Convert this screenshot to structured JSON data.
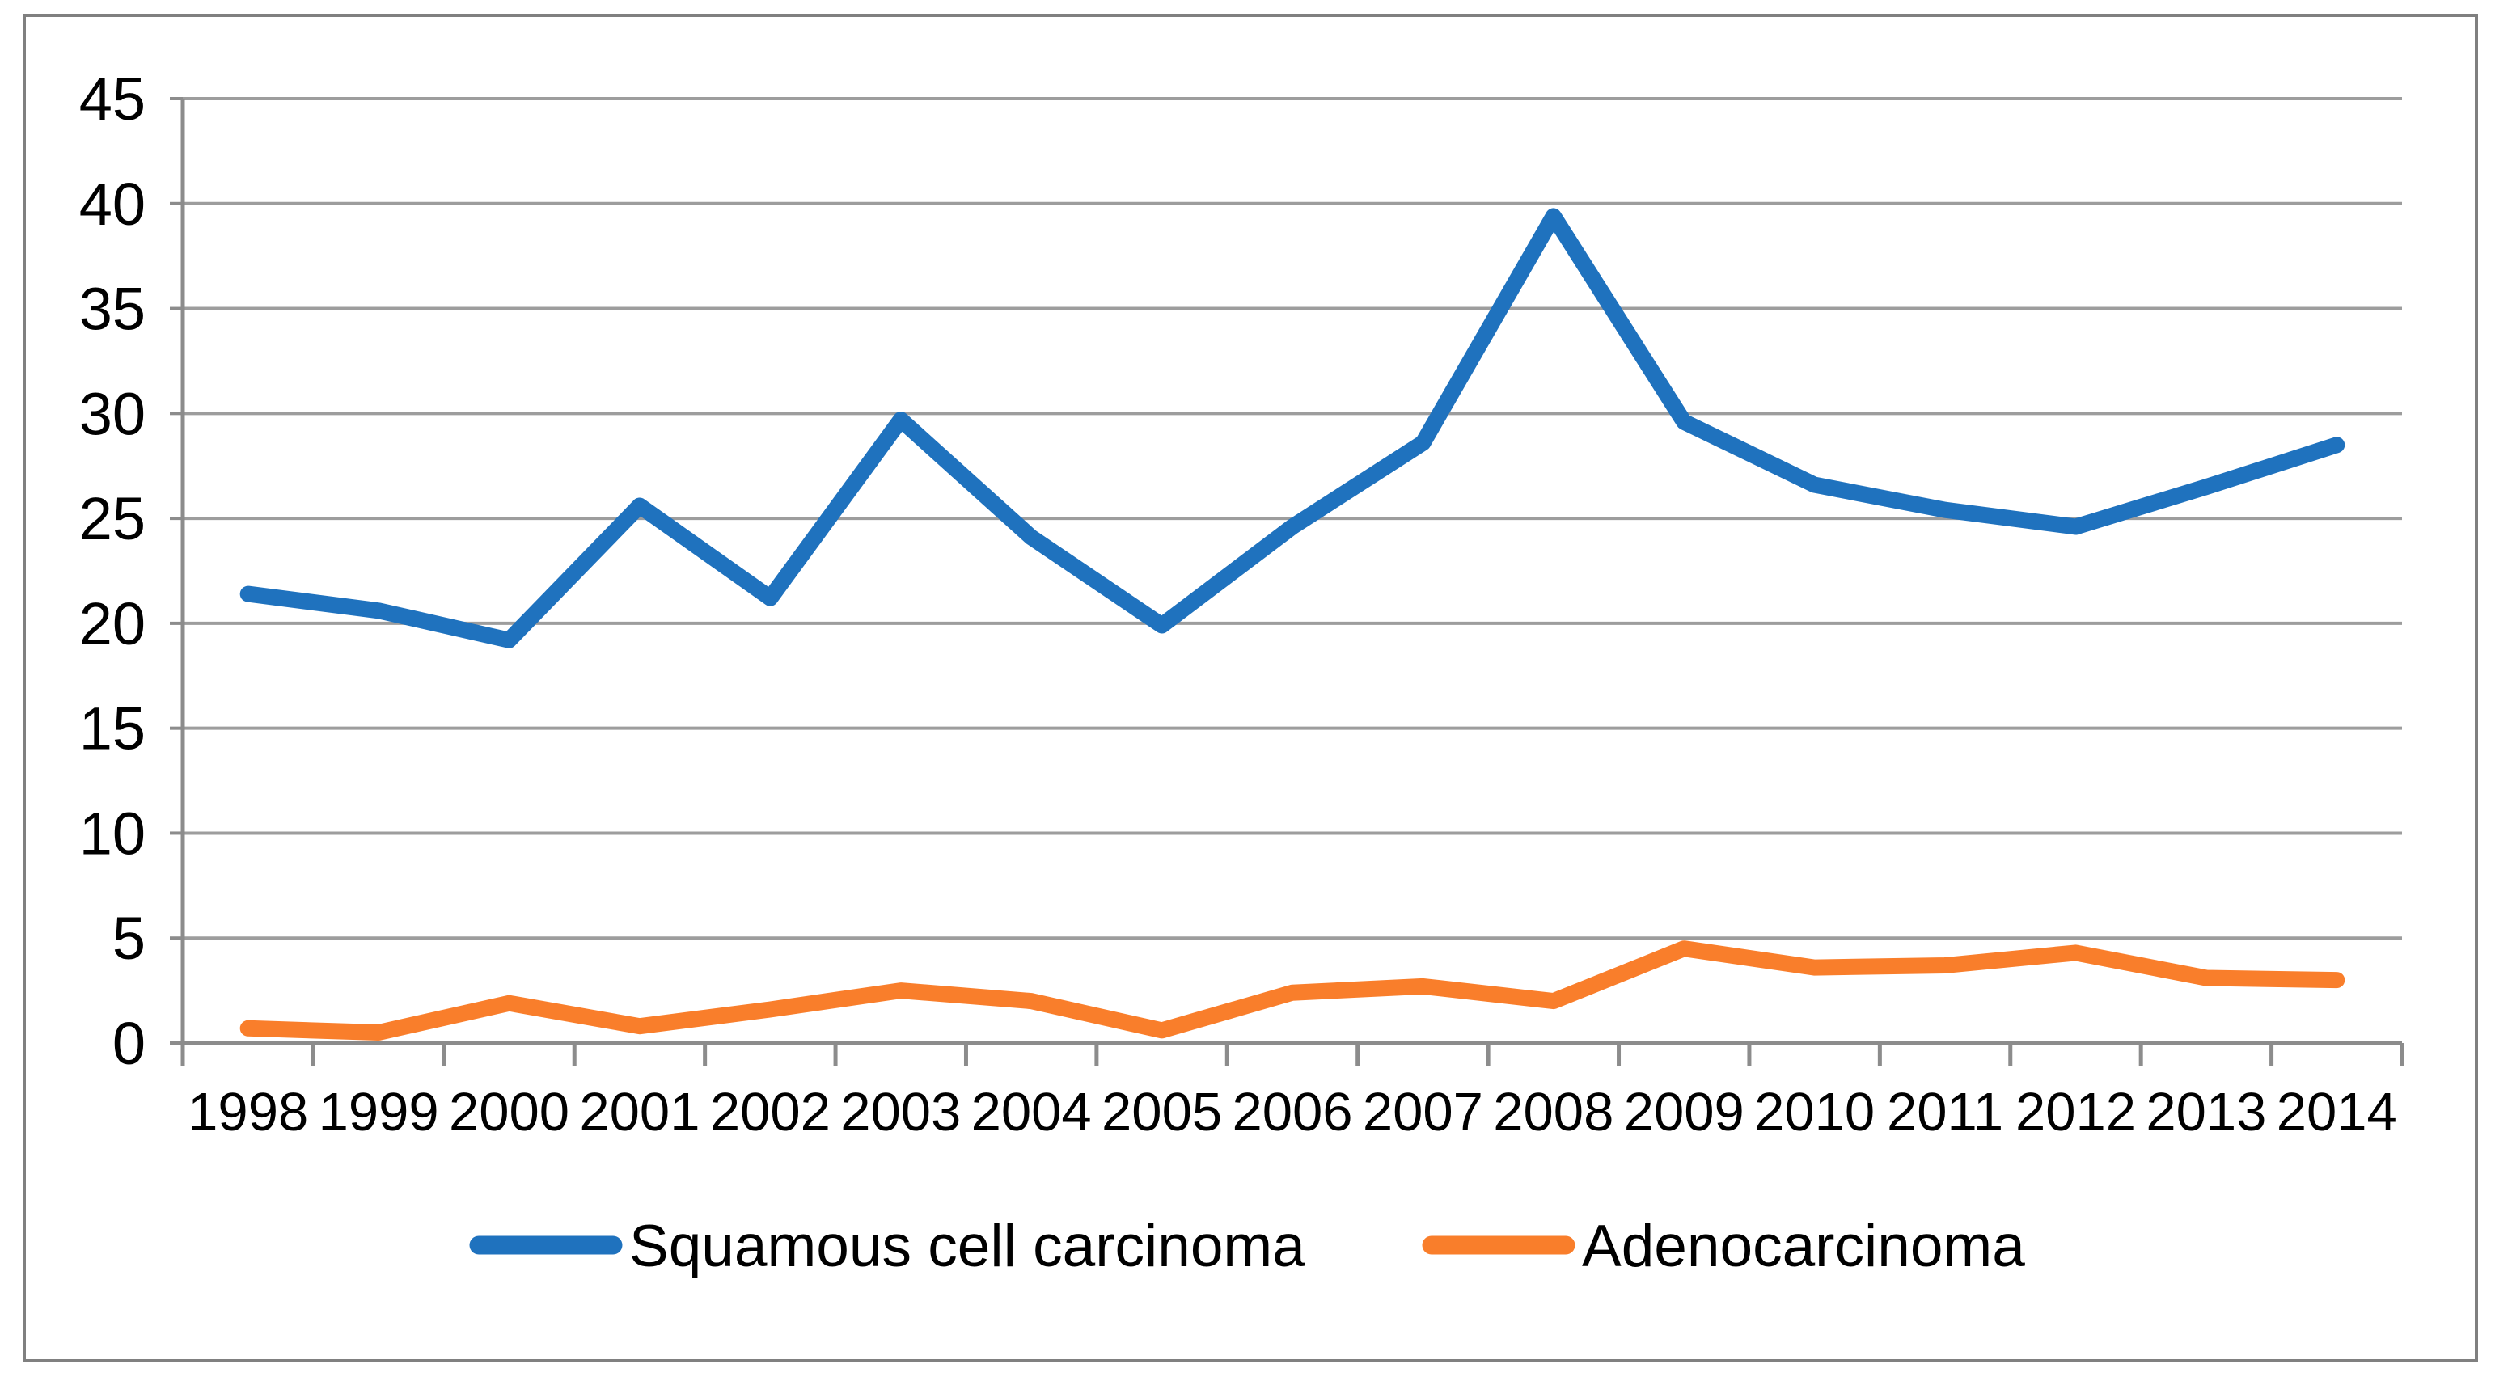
{
  "chart_data": {
    "type": "line",
    "title": "",
    "xlabel": "",
    "ylabel": "",
    "categories": [
      "1998",
      "1999",
      "2000",
      "2001",
      "2002",
      "2003",
      "2004",
      "2005",
      "2006",
      "2007",
      "2008",
      "2009",
      "2010",
      "2011",
      "2012",
      "2013",
      "2014"
    ],
    "series": [
      {
        "name": "Squamous cell carcinoma",
        "color": "#1f72be",
        "values": [
          21.4,
          20.6,
          19.2,
          25.6,
          21.2,
          29.7,
          24.1,
          19.9,
          24.6,
          28.6,
          39.4,
          29.6,
          26.6,
          25.4,
          24.6,
          26.5,
          28.5
        ]
      },
      {
        "name": "Adenocarcinoma",
        "color": "#f97e2b",
        "values": [
          0.7,
          0.5,
          1.9,
          0.8,
          1.6,
          2.5,
          2.0,
          0.6,
          2.4,
          2.7,
          2.0,
          4.5,
          3.6,
          3.7,
          4.3,
          3.1,
          3.0
        ]
      }
    ],
    "ylim": [
      0,
      45
    ],
    "y_ticks": [
      0,
      5,
      10,
      15,
      20,
      25,
      30,
      35,
      40,
      45
    ],
    "grid": "horizontal",
    "legend_position": "bottom",
    "gridline_color": "#9d9d9d",
    "axis_color": "#8c8c8c",
    "frame_color": "#808080"
  }
}
